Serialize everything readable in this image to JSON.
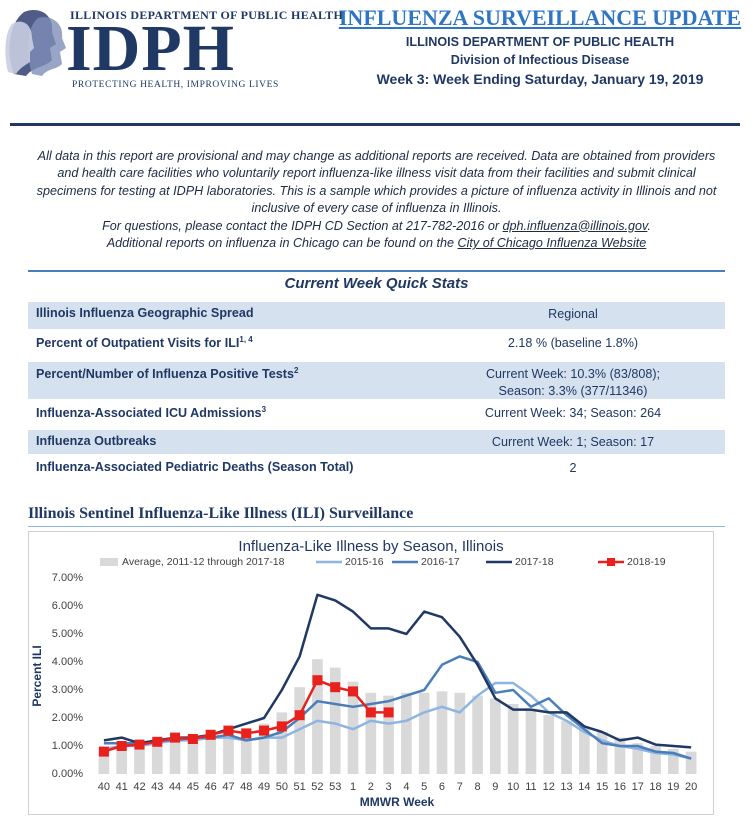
{
  "header": {
    "agency": "ILLINOIS DEPARTMENT OF PUBLIC HEALTH",
    "logo": "IDPH",
    "tagline": "PROTECTING HEALTH, IMPROVING LIVES",
    "title": "INFLUENZA SURVEILLANCE UPDATE",
    "department": "ILLINOIS DEPARTMENT OF PUBLIC HEALTH",
    "division": "Division of Infectious Disease",
    "week": "Week 3: Week Ending Saturday, January 19, 2019"
  },
  "intro": {
    "paragraph": "All data in this report are provisional and may change as additional reports are received. Data are obtained from providers and health care facilities who voluntarily report influenza-like illness visit data from their facilities and submit clinical specimens for testing at IDPH laboratories.  This is a sample which provides a picture of influenza activity in Illinois and not inclusive of every case of influenza in Illinois.",
    "contact": "For questions, please contact the IDPH CD Section at 217-782-2016 or ",
    "email": "dph.influenza@illinois.gov",
    "contact_end": ".",
    "chicago": "Additional reports on influenza in Chicago can be found on the ",
    "chicago_link": "City of Chicago Influenza Website"
  },
  "quick_stats": {
    "title": "Current Week Quick Stats",
    "rows": [
      {
        "label": "Illinois Influenza Geographic Spread",
        "value_lines": [
          "Regional"
        ]
      },
      {
        "label": "Percent of Outpatient Visits for ILI",
        "sup": "1, 4",
        "value_lines": [
          "2.18 % (baseline 1.8%)"
        ]
      },
      {
        "label": "Percent/Number of Influenza Positive Tests",
        "sup": "2",
        "value_lines": [
          "Current Week: 10.3% (83/808);",
          "Season: 3.3% (377/11346)"
        ]
      },
      {
        "label": "Influenza-Associated ICU Admissions",
        "sup": "3",
        "value_lines": [
          "Current Week: 34; Season: 264"
        ]
      },
      {
        "label": "Influenza Outbreaks",
        "value_lines": [
          "Current Week: 1; Season: 17"
        ]
      },
      {
        "label": "Influenza-Associated Pediatric Deaths (Season Total)",
        "value_lines": [
          "2"
        ]
      }
    ]
  },
  "section_title": "Illinois Sentinel Influenza-Like Illness (ILI) Surveillance",
  "chart_data": {
    "type": "line",
    "title": "Influenza-Like Illness by Season, Illinois",
    "y_label": "Percent ILI",
    "x_label": "MMWR Week",
    "categories": [
      "40",
      "41",
      "42",
      "43",
      "44",
      "45",
      "46",
      "47",
      "48",
      "49",
      "50",
      "51",
      "52",
      "53",
      "1",
      "2",
      "3",
      "4",
      "5",
      "6",
      "7",
      "8",
      "9",
      "10",
      "11",
      "12",
      "13",
      "14",
      "15",
      "16",
      "17",
      "18",
      "19",
      "20"
    ],
    "ylim": [
      0,
      7
    ],
    "yticks": [
      {
        "value": 0,
        "label": "0.00%"
      },
      {
        "value": 1,
        "label": "1.00%"
      },
      {
        "value": 2,
        "label": "2.00%"
      },
      {
        "value": 3,
        "label": "3.00%"
      },
      {
        "value": 4,
        "label": "4.00%"
      },
      {
        "value": 5,
        "label": "5.00%"
      },
      {
        "value": 6,
        "label": "6.00%"
      },
      {
        "value": 7,
        "label": "7.00%"
      }
    ],
    "grid": false,
    "series": [
      {
        "name": "Average, 2011-12 through 2017-18",
        "type": "bar",
        "color": "#d9d9d9",
        "values": [
          0.9,
          1.0,
          1.0,
          1.1,
          1.2,
          1.3,
          1.4,
          1.5,
          1.6,
          1.8,
          2.2,
          3.1,
          4.1,
          3.8,
          3.3,
          2.9,
          2.8,
          2.9,
          2.9,
          2.95,
          2.9,
          2.8,
          2.7,
          2.5,
          2.3,
          2.1,
          1.9,
          1.7,
          1.5,
          1.3,
          1.1,
          1.0,
          0.9,
          0.8
        ]
      },
      {
        "name": "2015-16",
        "type": "line",
        "color": "#8db4e2",
        "values": [
          0.9,
          1.0,
          1.0,
          1.1,
          1.2,
          1.2,
          1.3,
          1.3,
          1.2,
          1.3,
          1.3,
          1.6,
          1.9,
          1.8,
          1.6,
          1.9,
          1.8,
          1.9,
          2.2,
          2.4,
          2.2,
          2.8,
          3.25,
          3.25,
          2.8,
          2.2,
          1.9,
          1.5,
          1.2,
          1.0,
          0.9,
          0.75,
          0.7,
          0.55
        ]
      },
      {
        "name": "2016-17",
        "type": "line",
        "color": "#4a7ebb",
        "values": [
          1.1,
          1.1,
          1.1,
          1.2,
          1.2,
          1.3,
          1.3,
          1.4,
          1.2,
          1.3,
          1.5,
          2.0,
          2.6,
          2.5,
          2.4,
          2.5,
          2.6,
          2.8,
          3.0,
          3.9,
          4.2,
          4.0,
          2.9,
          3.0,
          2.4,
          2.7,
          2.1,
          1.6,
          1.1,
          1.0,
          1.0,
          0.8,
          0.75,
          0.55
        ]
      },
      {
        "name": "2017-18",
        "type": "line",
        "color": "#1f3864",
        "values": [
          1.2,
          1.3,
          1.1,
          1.2,
          1.3,
          1.3,
          1.4,
          1.6,
          1.8,
          2.0,
          3.0,
          4.2,
          6.4,
          6.2,
          5.8,
          5.2,
          5.2,
          5.0,
          5.8,
          5.6,
          4.9,
          3.9,
          2.7,
          2.3,
          2.3,
          2.2,
          2.2,
          1.7,
          1.5,
          1.2,
          1.3,
          1.05,
          1.0,
          0.95
        ]
      },
      {
        "name": "2018-19",
        "type": "line",
        "color": "#e8211d",
        "marker": "square",
        "values": [
          0.8,
          1.0,
          1.05,
          1.15,
          1.3,
          1.25,
          1.4,
          1.55,
          1.45,
          1.55,
          1.7,
          2.1,
          3.35,
          3.1,
          2.95,
          2.2,
          2.2,
          null,
          null,
          null,
          null,
          null,
          null,
          null,
          null,
          null,
          null,
          null,
          null,
          null,
          null,
          null,
          null,
          null
        ]
      }
    ]
  }
}
